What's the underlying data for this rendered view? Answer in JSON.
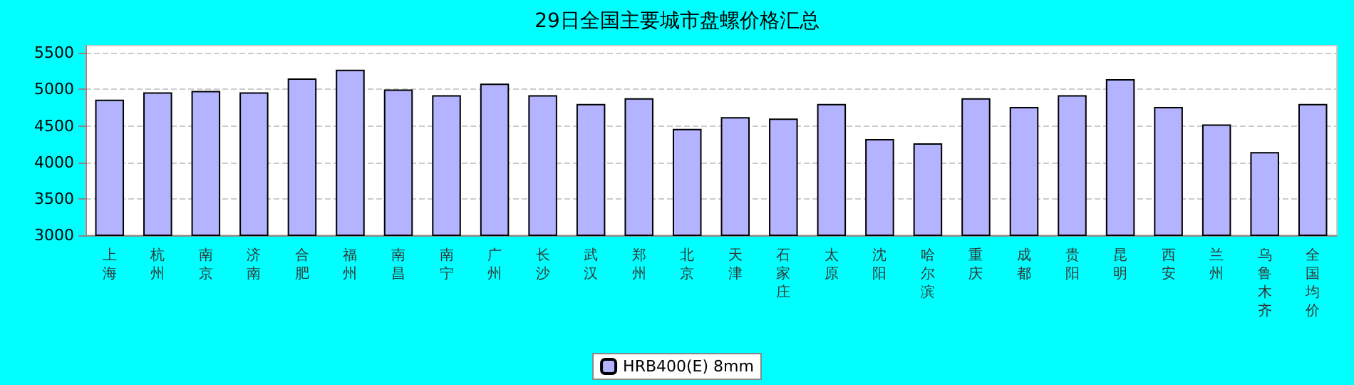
{
  "chart_data": {
    "type": "bar",
    "title": "29日全国主要城市盘螺价格汇总",
    "categories": [
      "上海",
      "杭州",
      "南京",
      "济南",
      "合肥",
      "福州",
      "南昌",
      "南宁",
      "广州",
      "长沙",
      "武汉",
      "郑州",
      "北京",
      "天津",
      "石家庄",
      "太原",
      "沈阳",
      "哈尔滨",
      "重庆",
      "成都",
      "贵阳",
      "昆明",
      "西安",
      "兰州",
      "乌鲁木齐",
      "全国均价"
    ],
    "series": [
      {
        "name": "HRB400(E) 8mm",
        "color": "#b3b3ff",
        "values": [
          4860,
          4960,
          4980,
          4960,
          5150,
          5270,
          5000,
          4920,
          5080,
          4920,
          4800,
          4880,
          4460,
          4620,
          4600,
          4800,
          4320,
          4260,
          4880,
          4760,
          4920,
          5140,
          4760,
          4520,
          4140,
          4800
        ]
      }
    ],
    "ylim": [
      3000,
      5600
    ],
    "yticks": [
      3000,
      3500,
      4000,
      4500,
      5000,
      5500
    ],
    "grid": "y",
    "legend": "bottom"
  }
}
